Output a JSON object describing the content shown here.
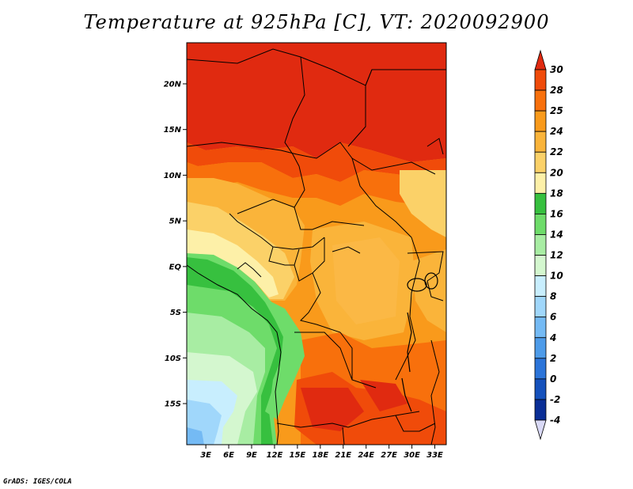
{
  "title": "Temperature at 925hPa [C], VT: 2020092900",
  "footer": "GrADS: IGES/COLA",
  "map": {
    "lat_ticks": [
      "20N",
      "15N",
      "10N",
      "5N",
      "EQ",
      "5S",
      "10S",
      "15S"
    ],
    "lat_values": [
      20,
      15,
      10,
      5,
      0,
      -5,
      -10,
      -15
    ],
    "lon_ticks": [
      "3E",
      "6E",
      "9E",
      "12E",
      "15E",
      "18E",
      "21E",
      "24E",
      "27E",
      "30E",
      "33E"
    ],
    "lon_values": [
      3,
      6,
      9,
      12,
      15,
      18,
      21,
      24,
      27,
      30,
      33
    ],
    "lat_range": [
      -19.5,
      24.5
    ],
    "lon_range": [
      0.5,
      34.5
    ]
  },
  "colorbar": {
    "labels": [
      "30",
      "28",
      "25",
      "24",
      "22",
      "20",
      "18",
      "16",
      "14",
      "12",
      "10",
      "8",
      "6",
      "4",
      "2",
      "0",
      "-2",
      "-4"
    ],
    "colors": [
      "#e02a10",
      "#f04b0a",
      "#f8700c",
      "#f99a1b",
      "#fab43a",
      "#fbd168",
      "#fdf0a8",
      "#37c03f",
      "#6edc6a",
      "#a8eda3",
      "#d4f7cf",
      "#c8eefe",
      "#a0d7fb",
      "#74baf4",
      "#4d9be9",
      "#2b74d9",
      "#1551bc",
      "#0a2e96",
      "#06106a"
    ],
    "top_color": "#e02a10",
    "bottom_color": "#d9d9f6"
  }
}
